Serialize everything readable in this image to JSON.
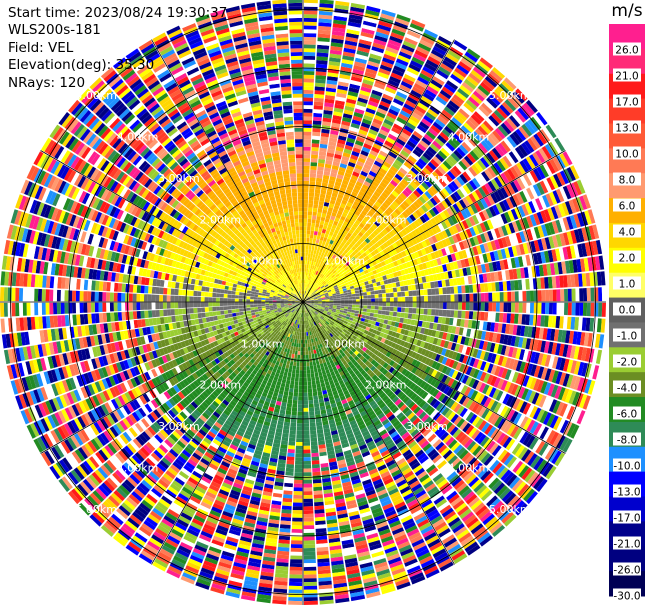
{
  "header": {
    "start_time": "Start time: 2023/08/24 19:30:37",
    "instrument": "WLS200s-181",
    "field": "Field: VEL",
    "elevation": "Elevation(deg): 35.30",
    "nrays": "NRays: 120"
  },
  "chart_data": {
    "type": "heatmap",
    "projection": "polar PPI",
    "ring_labels": [
      "1.00km",
      "2.00km",
      "3.00km",
      "4.00km",
      "5.00km"
    ],
    "ring_ranges_km": [
      1,
      2,
      3,
      4,
      5
    ],
    "max_range_km": 5.4,
    "n_rays": 120,
    "colorbar": {
      "unit": "m/s",
      "tick_labels": [
        "26.0",
        "21.0",
        "17.0",
        "13.0",
        "10.0",
        "8.0",
        "6.0",
        "4.0",
        "2.0",
        "1.0",
        "0.0",
        "-1.0",
        "-2.0",
        "-4.0",
        "-6.0",
        "-8.0",
        "-10.0",
        "-13.0",
        "-17.0",
        "-21.0",
        "-26.0",
        "-30.0"
      ],
      "colors": [
        "#ff1f8f",
        "#ff2a78",
        "#ff1a1a",
        "#ff3c28",
        "#ff5a37",
        "#ff7a55",
        "#ff9a70",
        "#ffb000",
        "#ffd700",
        "#ffff00",
        "#ffff66",
        "#606060",
        "#707070",
        "#9acd32",
        "#6b8e23",
        "#228b22",
        "#2e8b57",
        "#1e90ff",
        "#0000ff",
        "#0000cd",
        "#00008b",
        "#000080",
        "#000055"
      ]
    },
    "velocity_pattern": "positive (yellow/orange) to the north, negative (green) to the south, noise beyond ~2.5 km"
  }
}
